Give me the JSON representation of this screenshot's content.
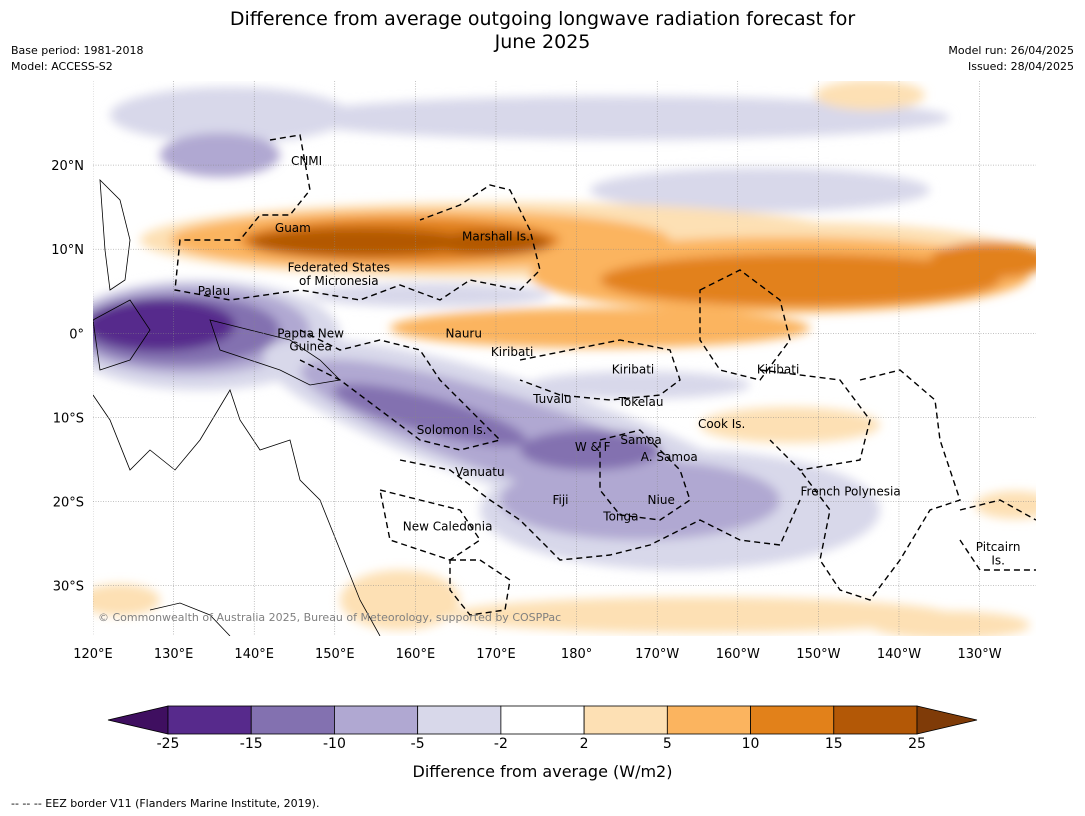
{
  "title": "Difference from average outgoing longwave radiation forecast for",
  "title_line2": "June 2025",
  "base_period": "Base period: 1981-2018",
  "model": "Model: ACCESS-S2",
  "model_run": "Model run: 26/04/2025",
  "issued": "Issued: 28/04/2025",
  "copyright": "© Commonwealth of Australia 2025, Bureau of Meteorology, supported by COSPPac",
  "lon_labels": [
    "120°E",
    "130°E",
    "140°E",
    "150°E",
    "160°E",
    "170°E",
    "180°",
    "170°W",
    "160°W",
    "150°W",
    "140°W",
    "130°W"
  ],
  "lat_labels": [
    "20°N",
    "10°N",
    "0°",
    "10°S",
    "20°S",
    "30°S"
  ],
  "regions": [
    {
      "name": "CNMI",
      "lon": 146.5,
      "lat": 20.5
    },
    {
      "name": "Guam",
      "lon": 144.8,
      "lat": 12.5
    },
    {
      "name": "Marshall Is.",
      "lon": 170.0,
      "lat": 11.5
    },
    {
      "name": "Federated States",
      "lon": 150.5,
      "lat": 7.8
    },
    {
      "name": "of Micronesia",
      "lon": 150.5,
      "lat": 6.2
    },
    {
      "name": "Palau",
      "lon": 135.0,
      "lat": 5.0
    },
    {
      "name": "Papua New",
      "lon": 147.0,
      "lat": 0.0
    },
    {
      "name": "Guinea",
      "lon": 147.0,
      "lat": -1.6
    },
    {
      "name": "Nauru",
      "lon": 166.0,
      "lat": 0.0
    },
    {
      "name": "Kiribati",
      "lon": 172.0,
      "lat": -2.2
    },
    {
      "name": "Kiribati",
      "lon": -173.0,
      "lat": -4.3
    },
    {
      "name": "Kiribati",
      "lon": -155.0,
      "lat": -4.3
    },
    {
      "name": "Tuvalu",
      "lon": 177.0,
      "lat": -7.8
    },
    {
      "name": "Tokelau",
      "lon": -172.0,
      "lat": -8.2
    },
    {
      "name": "Cook Is.",
      "lon": -162.0,
      "lat": -10.8
    },
    {
      "name": "Solomon Is.",
      "lon": 164.5,
      "lat": -11.5
    },
    {
      "name": "W & F",
      "lon": -178.0,
      "lat": -13.5
    },
    {
      "name": "Samoa",
      "lon": -172.0,
      "lat": -12.7
    },
    {
      "name": "A. Samoa",
      "lon": -168.5,
      "lat": -14.7
    },
    {
      "name": "Vanuatu",
      "lon": 168.0,
      "lat": -16.5
    },
    {
      "name": "French Polynesia",
      "lon": -146.0,
      "lat": -18.8
    },
    {
      "name": "Fiji",
      "lon": 178.0,
      "lat": -19.8
    },
    {
      "name": "Niue",
      "lon": -169.5,
      "lat": -19.8
    },
    {
      "name": "Tonga",
      "lon": -174.5,
      "lat": -21.8
    },
    {
      "name": "New Caledonia",
      "lon": 164.0,
      "lat": -23.0
    },
    {
      "name": "Pitcairn",
      "lon": -127.7,
      "lat": -25.4
    },
    {
      "name": "Is.",
      "lon": -127.7,
      "lat": -27.0
    }
  ],
  "map_extent": {
    "lon_min": 120,
    "lon_max": 237,
    "lat_min": -36,
    "lat_max": 30
  },
  "legend": {
    "title": "Difference from average (W/m2)",
    "ticks": [
      "-25",
      "-15",
      "-10",
      "-5",
      "-2",
      "2",
      "5",
      "10",
      "15",
      "25"
    ],
    "colors": [
      "#3f0f60",
      "#572a8c",
      "#8371b0",
      "#b0a8d2",
      "#d8d8ea",
      "#ffffff",
      "#fde0b4",
      "#fbb45f",
      "#e2811a",
      "#b35806",
      "#7f3b08"
    ]
  },
  "footnote": "--  --  -- EEZ border V11 (Flanders Marine Institute, 2019).",
  "chart_data": {
    "type": "heatmap",
    "title": "Difference from average outgoing longwave radiation forecast for June 2025",
    "legend_title": "Difference from average (W/m2)",
    "bins": [
      -25,
      -15,
      -10,
      -5,
      -2,
      2,
      5,
      10,
      15,
      25
    ],
    "xlim": [
      120,
      237
    ],
    "ylim": [
      -36,
      30
    ],
    "anomaly_regions": [
      {
        "sign": "positive",
        "level": 15,
        "lon_range": [
          140,
          180
        ],
        "lat_range": [
          8,
          14
        ]
      },
      {
        "sign": "positive",
        "level": 10,
        "lon_range": [
          165,
          237
        ],
        "lat_range": [
          1,
          12
        ]
      },
      {
        "sign": "positive",
        "level": 2,
        "lon_range": [
          -165,
          -150
        ],
        "lat_range": [
          -13,
          -9
        ]
      },
      {
        "sign": "negative",
        "level": -15,
        "lon_range": [
          120,
          145
        ],
        "lat_range": [
          -7,
          6
        ]
      },
      {
        "sign": "negative",
        "level": -10,
        "lon_range": [
          155,
          -170
        ],
        "lat_range": [
          -17,
          -8
        ]
      },
      {
        "sign": "negative",
        "level": -5,
        "lon_range": [
          160,
          -145
        ],
        "lat_range": [
          -28,
          -4
        ]
      }
    ]
  }
}
